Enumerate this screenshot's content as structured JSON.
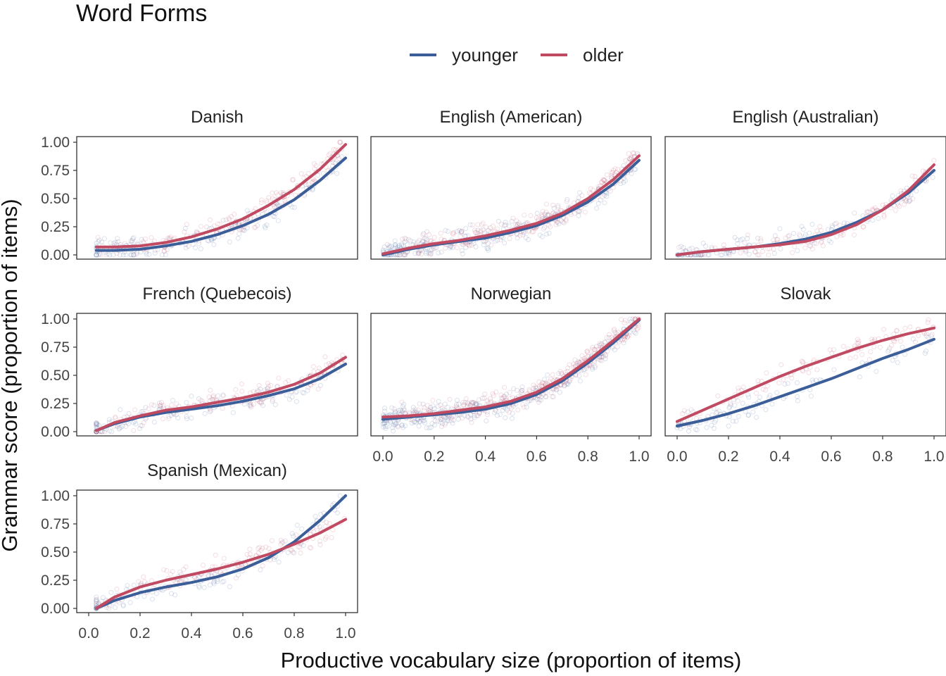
{
  "title": "Word Forms",
  "legend": [
    {
      "label": "younger",
      "color": "#3b5e99"
    },
    {
      "label": "older",
      "color": "#c04a62"
    }
  ],
  "xlabel": "Productive vocabulary size (proportion of items)",
  "ylabel": "Grammar score (proportion of items)",
  "chart_data": {
    "type": "scatter",
    "facets": true,
    "xlim": [
      0,
      1
    ],
    "ylim": [
      0,
      1
    ],
    "x_ticks": [
      "0.0",
      "0.2",
      "0.4",
      "0.6",
      "0.8",
      "1.0"
    ],
    "y_ticks": [
      "0.00",
      "0.25",
      "0.50",
      "0.75",
      "1.00"
    ],
    "series_names": [
      "younger",
      "older"
    ],
    "panels": [
      {
        "name": "Danish",
        "x": [
          0.03,
          0.1,
          0.2,
          0.3,
          0.4,
          0.5,
          0.6,
          0.7,
          0.8,
          0.9,
          1.0
        ],
        "younger": [
          0.04,
          0.04,
          0.05,
          0.08,
          0.12,
          0.18,
          0.26,
          0.36,
          0.49,
          0.66,
          0.86
        ],
        "older": [
          0.07,
          0.07,
          0.08,
          0.11,
          0.16,
          0.23,
          0.32,
          0.44,
          0.58,
          0.76,
          0.98
        ]
      },
      {
        "name": "English (American)",
        "x": [
          0.0,
          0.1,
          0.2,
          0.3,
          0.4,
          0.5,
          0.6,
          0.7,
          0.8,
          0.9,
          1.0
        ],
        "younger": [
          0.0,
          0.05,
          0.09,
          0.12,
          0.15,
          0.2,
          0.26,
          0.35,
          0.47,
          0.63,
          0.84
        ],
        "older": [
          0.01,
          0.06,
          0.1,
          0.13,
          0.17,
          0.22,
          0.28,
          0.37,
          0.5,
          0.67,
          0.88
        ]
      },
      {
        "name": "English (Australian)",
        "x": [
          0.0,
          0.1,
          0.2,
          0.3,
          0.4,
          0.5,
          0.6,
          0.7,
          0.8,
          0.9,
          1.0
        ],
        "younger": [
          0.0,
          0.03,
          0.05,
          0.07,
          0.1,
          0.14,
          0.2,
          0.29,
          0.4,
          0.55,
          0.75
        ],
        "older": [
          0.0,
          0.03,
          0.05,
          0.07,
          0.09,
          0.12,
          0.18,
          0.27,
          0.4,
          0.57,
          0.8
        ]
      },
      {
        "name": "French (Quebecois)",
        "x": [
          0.03,
          0.1,
          0.2,
          0.3,
          0.4,
          0.5,
          0.6,
          0.7,
          0.8,
          0.9,
          1.0
        ],
        "younger": [
          0.01,
          0.07,
          0.13,
          0.17,
          0.2,
          0.23,
          0.27,
          0.32,
          0.38,
          0.47,
          0.6
        ],
        "older": [
          0.01,
          0.08,
          0.14,
          0.19,
          0.22,
          0.26,
          0.3,
          0.35,
          0.42,
          0.52,
          0.66
        ]
      },
      {
        "name": "Norwegian",
        "x": [
          0.0,
          0.1,
          0.2,
          0.3,
          0.4,
          0.5,
          0.6,
          0.7,
          0.8,
          0.9,
          1.0
        ],
        "younger": [
          0.11,
          0.13,
          0.15,
          0.17,
          0.2,
          0.25,
          0.33,
          0.45,
          0.61,
          0.79,
          0.99
        ],
        "older": [
          0.13,
          0.14,
          0.16,
          0.19,
          0.22,
          0.27,
          0.35,
          0.47,
          0.63,
          0.81,
          1.0
        ]
      },
      {
        "name": "Slovak",
        "x": [
          0.0,
          0.1,
          0.2,
          0.3,
          0.4,
          0.5,
          0.6,
          0.7,
          0.8,
          0.9,
          1.0
        ],
        "younger": [
          0.05,
          0.1,
          0.16,
          0.23,
          0.31,
          0.39,
          0.47,
          0.56,
          0.65,
          0.73,
          0.82
        ],
        "older": [
          0.09,
          0.19,
          0.29,
          0.39,
          0.49,
          0.58,
          0.66,
          0.74,
          0.81,
          0.87,
          0.92
        ]
      },
      {
        "name": "Spanish (Mexican)",
        "x": [
          0.03,
          0.1,
          0.2,
          0.3,
          0.4,
          0.5,
          0.6,
          0.7,
          0.8,
          0.9,
          1.0
        ],
        "younger": [
          0.0,
          0.07,
          0.14,
          0.19,
          0.23,
          0.28,
          0.35,
          0.45,
          0.59,
          0.78,
          1.0
        ],
        "older": [
          0.0,
          0.1,
          0.19,
          0.25,
          0.3,
          0.35,
          0.41,
          0.48,
          0.57,
          0.67,
          0.79
        ]
      }
    ]
  }
}
